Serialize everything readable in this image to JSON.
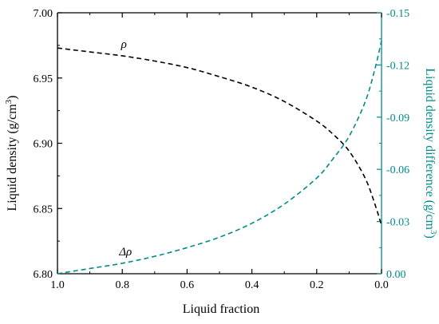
{
  "chart_data": {
    "type": "line",
    "xlabel": "Liquid fraction",
    "ylabel_left": "Liquid density (g/cm",
    "ylabel_left_sup": "3",
    "ylabel_left_end": ")",
    "ylabel_right": "Liquid density difference (g/cm",
    "ylabel_right_sup": "3",
    "ylabel_right_end": ")",
    "xlim": [
      1.0,
      0.0
    ],
    "x_reversed": true,
    "ylim_left": [
      6.8,
      7.0
    ],
    "ylim_right": [
      0.0,
      -0.15
    ],
    "y_right_reversed": true,
    "x_ticks": [
      "1.0",
      "0.8",
      "0.6",
      "0.4",
      "0.2",
      "0.0"
    ],
    "x_tick_values": [
      1.0,
      0.8,
      0.6,
      0.4,
      0.2,
      0.0
    ],
    "y_left_ticks": [
      "6.80",
      "6.85",
      "6.90",
      "6.95",
      "7.00"
    ],
    "y_left_tick_values": [
      6.8,
      6.85,
      6.9,
      6.95,
      7.0
    ],
    "y_right_ticks": [
      "0.00",
      "-0.03",
      "-0.06",
      "-0.09",
      "-0.12",
      "-0.15"
    ],
    "y_right_tick_values": [
      0.0,
      -0.03,
      -0.06,
      -0.09,
      -0.12,
      -0.15
    ],
    "grid": false,
    "series": [
      {
        "name": "ρ",
        "axis": "left",
        "color": "#000000",
        "dash": true,
        "x": [
          1.0,
          0.9,
          0.8,
          0.7,
          0.6,
          0.5,
          0.4,
          0.3,
          0.2,
          0.15,
          0.1,
          0.05,
          0.02,
          0.0
        ],
        "y": [
          6.973,
          6.97,
          6.967,
          6.963,
          6.958,
          6.951,
          6.943,
          6.932,
          6.917,
          6.907,
          6.894,
          6.873,
          6.853,
          6.837
        ]
      },
      {
        "name": "Δρ",
        "axis": "right",
        "color": "#008B8B",
        "dash": true,
        "x": [
          1.0,
          0.9,
          0.8,
          0.7,
          0.6,
          0.5,
          0.4,
          0.3,
          0.2,
          0.15,
          0.1,
          0.05,
          0.02,
          0.0
        ],
        "y": [
          0.0,
          -0.003,
          -0.006,
          -0.01,
          -0.015,
          -0.021,
          -0.029,
          -0.04,
          -0.055,
          -0.066,
          -0.079,
          -0.099,
          -0.118,
          -0.134
        ]
      }
    ],
    "annotations": [
      {
        "text": "ρ",
        "series": 0
      },
      {
        "text": "Δρ",
        "series": 1
      }
    ],
    "colors": {
      "left_axis": "#000000",
      "right_axis": "#008B8B"
    }
  }
}
